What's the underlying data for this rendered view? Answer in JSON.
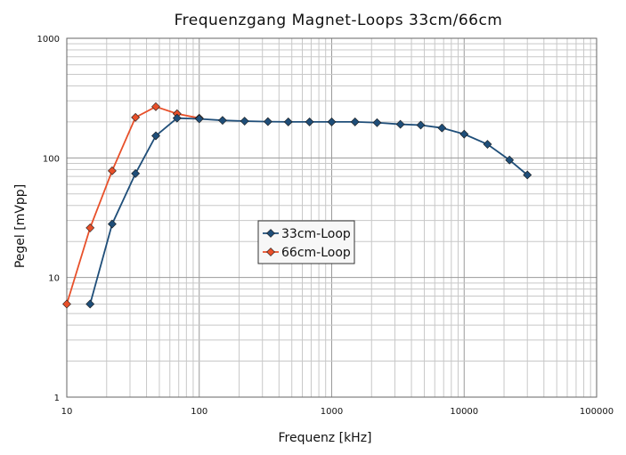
{
  "chart_data": {
    "type": "line",
    "title": "Frequenzgang Magnet-Loops 33cm/66cm",
    "xlabel": "Frequenz [kHz]",
    "ylabel": "Pegel [mVpp]",
    "xscale": "log",
    "yscale": "log",
    "xlim": [
      10,
      100000
    ],
    "ylim": [
      1,
      1000
    ],
    "x_tick_labels": [
      "10",
      "100",
      "1000",
      "10000",
      "100000"
    ],
    "y_tick_labels": [
      "1",
      "10",
      "100",
      "1000"
    ],
    "grid": true,
    "legend_position": "center-left",
    "series": [
      {
        "name": "33cm-Loop",
        "color": "#1f4e79",
        "marker": "diamond",
        "x": [
          15,
          22,
          33,
          47,
          68,
          100,
          150,
          220,
          330,
          470,
          680,
          1000,
          1500,
          2200,
          3300,
          4700,
          6800,
          10000,
          15000,
          22000,
          30000
        ],
        "y": [
          6,
          28,
          74,
          153,
          215,
          212,
          206,
          203,
          201,
          200,
          200,
          200,
          200,
          197,
          191,
          188,
          178,
          158,
          130,
          96,
          72
        ]
      },
      {
        "name": "66cm-Loop",
        "color": "#e8502a",
        "marker": "diamond",
        "x": [
          10,
          15,
          22,
          33,
          47,
          68,
          100
        ],
        "y": [
          6,
          26,
          78,
          218,
          268,
          234,
          215
        ]
      }
    ]
  }
}
